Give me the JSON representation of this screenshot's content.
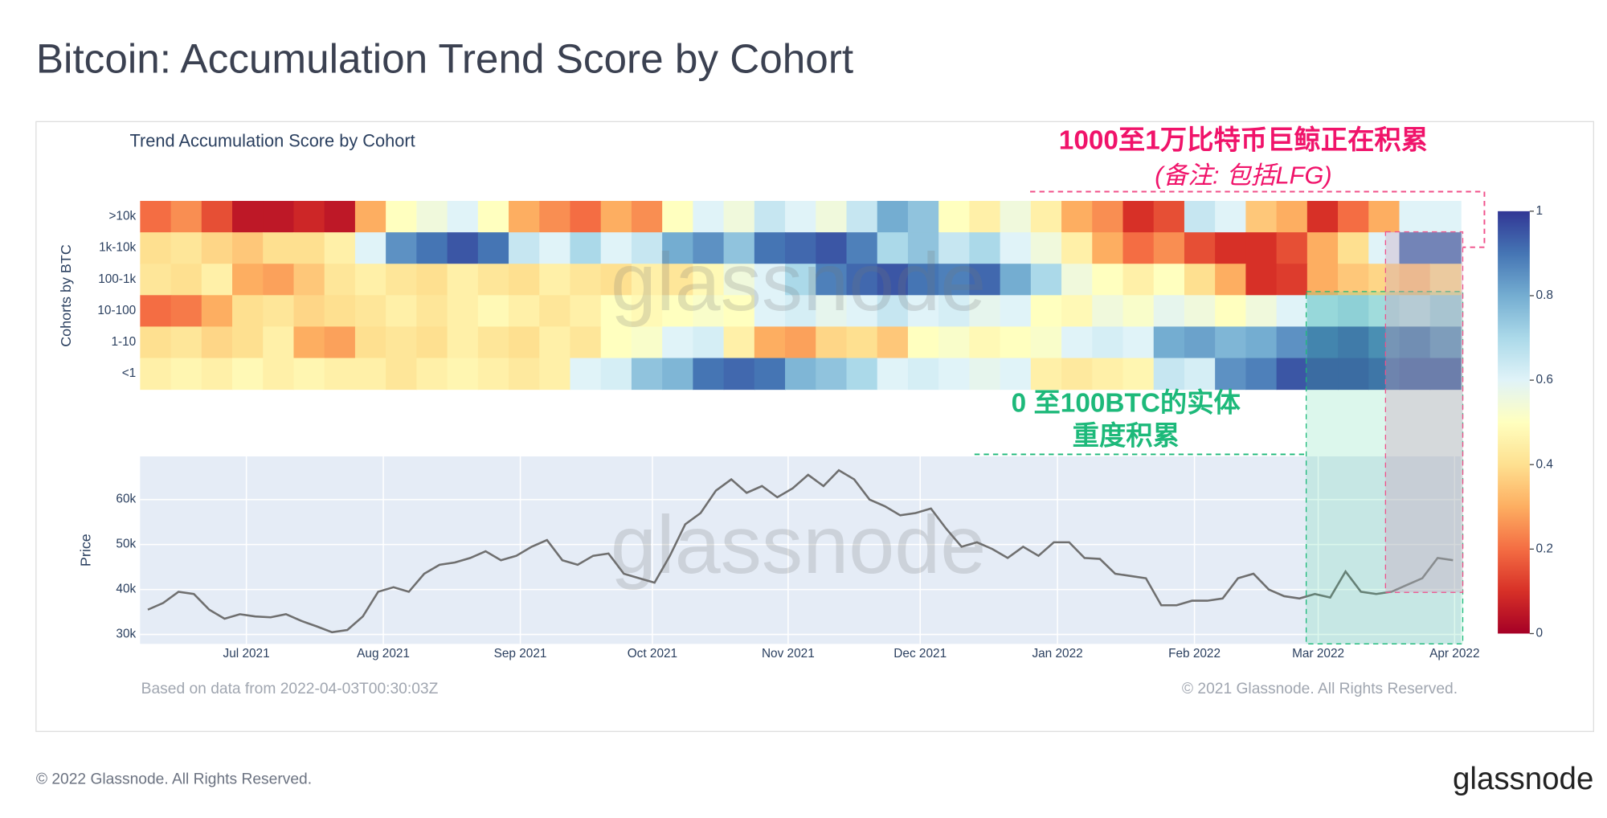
{
  "title": "Bitcoin: Accumulation Trend Score by Cohort",
  "watermark": "glassnode",
  "data_note": "Based on data from 2022-04-03T00:30:03Z",
  "chart_copyright": "© 2021 Glassnode. All Rights Reserved.",
  "page_copyright": "© 2022 Glassnode. All Rights Reserved.",
  "logo": "glassnode",
  "annotations": {
    "whales": "1000至1万比特币巨鲸正在积累",
    "whales_note": "(备注: 包括LFG)",
    "small_1": "0 至100BTC的实体",
    "small_2": "重度积累"
  },
  "chart_data": [
    {
      "type": "heatmap",
      "title": "Trend Accumulation Score by Cohort",
      "y_label": "Cohorts by BTC",
      "xlim": [
        0,
        43
      ],
      "zlim": [
        0,
        1
      ],
      "zticks": [
        0,
        0.2,
        0.4,
        0.6,
        0.8,
        1
      ],
      "colorscale": [
        "#a50026",
        "#d73027",
        "#f46d43",
        "#fdae61",
        "#fee090",
        "#ffffbf",
        "#e0f3f8",
        "#abd9e9",
        "#74add1",
        "#4575b4",
        "#313695"
      ],
      "series": [
        {
          "name": ">10k",
          "values": [
            0.2,
            0.25,
            0.15,
            0.05,
            0.05,
            0.08,
            0.05,
            0.3,
            0.5,
            0.55,
            0.6,
            0.5,
            0.3,
            0.25,
            0.2,
            0.3,
            0.25,
            0.5,
            0.6,
            0.55,
            0.65,
            0.6,
            0.55,
            0.65,
            0.8,
            0.75,
            0.5,
            0.45,
            0.55,
            0.45,
            0.3,
            0.25,
            0.1,
            0.15,
            0.65,
            0.6,
            0.35,
            0.3,
            0.1,
            0.2,
            0.3,
            0.6,
            0.6
          ]
        },
        {
          "name": "1k-10k",
          "values": [
            0.4,
            0.42,
            0.38,
            0.35,
            0.4,
            0.4,
            0.45,
            0.6,
            0.85,
            0.9,
            0.95,
            0.9,
            0.65,
            0.6,
            0.7,
            0.6,
            0.65,
            0.8,
            0.85,
            0.75,
            0.9,
            0.92,
            0.95,
            0.88,
            0.7,
            0.75,
            0.65,
            0.7,
            0.6,
            0.55,
            0.45,
            0.3,
            0.2,
            0.25,
            0.15,
            0.1,
            0.1,
            0.15,
            0.3,
            0.4,
            0.6,
            0.9,
            0.9
          ]
        },
        {
          "name": "100-1k",
          "values": [
            0.42,
            0.4,
            0.45,
            0.3,
            0.28,
            0.35,
            0.42,
            0.45,
            0.42,
            0.4,
            0.45,
            0.42,
            0.4,
            0.45,
            0.42,
            0.4,
            0.45,
            0.42,
            0.48,
            0.55,
            0.6,
            0.7,
            0.88,
            0.92,
            0.95,
            0.9,
            0.88,
            0.92,
            0.8,
            0.7,
            0.55,
            0.5,
            0.45,
            0.5,
            0.4,
            0.3,
            0.1,
            0.12,
            0.3,
            0.35,
            0.38,
            0.35,
            0.4
          ]
        },
        {
          "name": "10-100",
          "values": [
            0.2,
            0.22,
            0.3,
            0.4,
            0.42,
            0.38,
            0.4,
            0.42,
            0.45,
            0.42,
            0.45,
            0.48,
            0.45,
            0.42,
            0.45,
            0.5,
            0.48,
            0.5,
            0.52,
            0.5,
            0.6,
            0.62,
            0.58,
            0.6,
            0.65,
            0.6,
            0.62,
            0.58,
            0.6,
            0.5,
            0.48,
            0.55,
            0.52,
            0.58,
            0.55,
            0.5,
            0.55,
            0.6,
            0.7,
            0.72,
            0.68,
            0.65,
            0.7
          ]
        },
        {
          "name": "1-10",
          "values": [
            0.4,
            0.42,
            0.38,
            0.4,
            0.45,
            0.3,
            0.28,
            0.4,
            0.42,
            0.4,
            0.45,
            0.42,
            0.4,
            0.45,
            0.42,
            0.5,
            0.52,
            0.6,
            0.62,
            0.45,
            0.3,
            0.28,
            0.38,
            0.4,
            0.35,
            0.5,
            0.52,
            0.48,
            0.5,
            0.52,
            0.6,
            0.62,
            0.6,
            0.8,
            0.82,
            0.78,
            0.8,
            0.85,
            0.9,
            0.92,
            0.88,
            0.9,
            0.85
          ]
        },
        {
          "name": "<1",
          "values": [
            0.45,
            0.47,
            0.45,
            0.48,
            0.45,
            0.47,
            0.45,
            0.45,
            0.42,
            0.45,
            0.47,
            0.45,
            0.43,
            0.45,
            0.6,
            0.62,
            0.75,
            0.78,
            0.9,
            0.92,
            0.9,
            0.78,
            0.75,
            0.7,
            0.6,
            0.62,
            0.6,
            0.58,
            0.6,
            0.45,
            0.43,
            0.45,
            0.47,
            0.65,
            0.62,
            0.85,
            0.88,
            0.95,
            0.95,
            0.95,
            0.93,
            0.95,
            0.95
          ]
        }
      ]
    },
    {
      "type": "line",
      "y_label": "Price",
      "color": "#6f6f6f",
      "grid": true,
      "xlim": [
        0,
        43
      ],
      "ylim": [
        27900,
        69600
      ],
      "yticks": [
        {
          "value": 30000,
          "label": "30k"
        },
        {
          "value": 40000,
          "label": "40k"
        },
        {
          "value": 50000,
          "label": "50k"
        },
        {
          "value": 60000,
          "label": "60k"
        }
      ],
      "xticks": [
        {
          "value": 3.46,
          "label": "Jul 2021"
        },
        {
          "value": 7.92,
          "label": "Aug 2021"
        },
        {
          "value": 12.38,
          "label": "Sep 2021"
        },
        {
          "value": 16.68,
          "label": "Oct 2021"
        },
        {
          "value": 21.1,
          "label": "Nov 2021"
        },
        {
          "value": 25.4,
          "label": "Dec 2021"
        },
        {
          "value": 29.87,
          "label": "Jan 2022"
        },
        {
          "value": 34.33,
          "label": "Feb 2022"
        },
        {
          "value": 38.36,
          "label": "Mar 2022"
        },
        {
          "value": 42.8,
          "label": "Apr 2022"
        }
      ],
      "values": [
        35500,
        37000,
        39500,
        39000,
        35500,
        33500,
        34500,
        34000,
        33800,
        34500,
        33000,
        31800,
        30500,
        31000,
        34000,
        39500,
        40500,
        39500,
        43500,
        45500,
        46000,
        47000,
        48500,
        46500,
        47500,
        49500,
        51000,
        46500,
        45500,
        47500,
        48000,
        43500,
        42500,
        41500,
        47500,
        54500,
        57000,
        62000,
        64500,
        61500,
        63000,
        60500,
        62500,
        65500,
        63000,
        66500,
        64500,
        60000,
        58500,
        56500,
        57000,
        58000,
        53500,
        49500,
        50500,
        49000,
        47000,
        49500,
        47500,
        50500,
        50500,
        47000,
        46800,
        43500,
        43000,
        42500,
        36500,
        36500,
        37500,
        37500,
        38000,
        42500,
        43500,
        40000,
        38500,
        38000,
        39000,
        38200,
        44000,
        39500,
        39000,
        39500,
        41000,
        42500,
        47000,
        46500
      ]
    }
  ]
}
